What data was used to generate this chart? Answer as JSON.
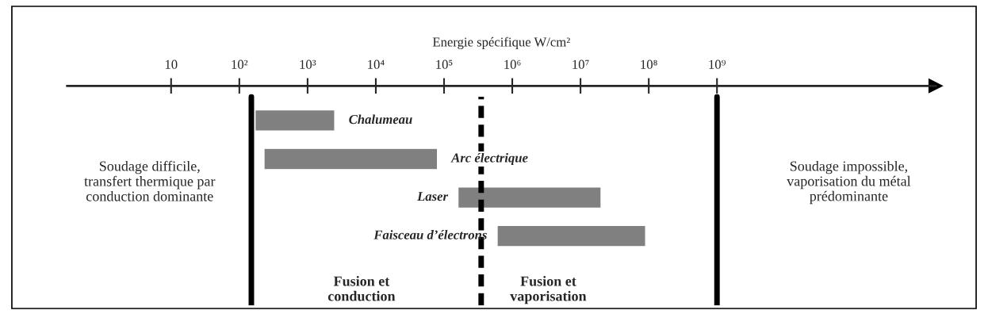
{
  "chart_data": {
    "type": "bar",
    "orientation": "horizontal",
    "log": "x",
    "grid": false,
    "tick_labels": "x",
    "xlabel": "Energie spécifique W/cm²",
    "categories": [
      "Chalumeau",
      "Arc électrique",
      "Laser",
      "Faisceau d’électrons"
    ],
    "base": [
      170,
      230,
      160000,
      600000
    ],
    "values": [
      2330,
      79770,
      19840000,
      89400000
    ],
    "color": "#808080",
    "xlim": [
      0.3,
      1600000000000
    ],
    "xticks": [
      10,
      {
        "value": 100,
        "label": "10²"
      },
      {
        "value": 1000,
        "label": "10³"
      },
      {
        "value": 10000,
        "label": "10⁴"
      },
      {
        "value": 100000,
        "label": "10⁵"
      },
      {
        "value": 1000000,
        "label": "10⁶"
      },
      {
        "value": 10000000,
        "label": "10⁷"
      },
      {
        "value": 100000000,
        "label": "10⁸"
      },
      {
        "value": 1000000000,
        "label": "10⁹"
      }
    ],
    "ref_lines": [
      {
        "axis": "x",
        "value": 150,
        "color": "#000000",
        "line_style": "solid"
      },
      {
        "axis": "x",
        "value": 350000,
        "color": "#000000",
        "line_style": "dashed"
      },
      {
        "axis": "x",
        "value": 1000000000,
        "color": "#000000",
        "line_style": "solid"
      }
    ],
    "annotations": [
      "Soudage difficile,\ntransfert thermique par\nconduction dominante",
      "Soudage impossible,\nvaporisation du métal\nprédominante",
      "Fusion et\nconduction",
      "Fusion et\nvaporisation"
    ]
  }
}
